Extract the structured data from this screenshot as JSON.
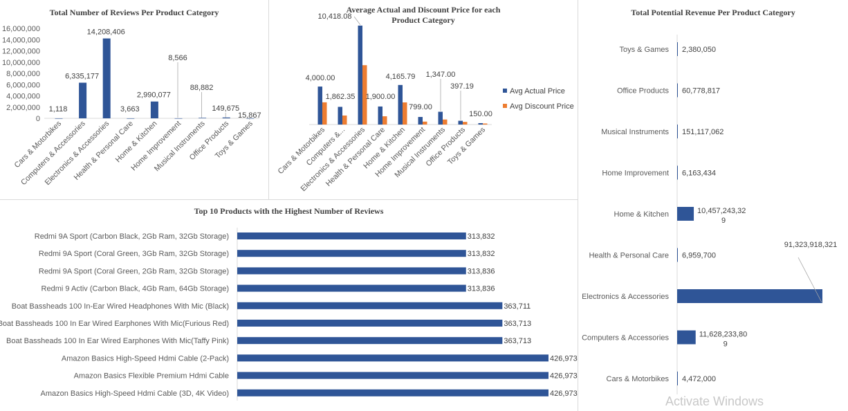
{
  "colors": {
    "blue": "#2f5597",
    "orange": "#ed7d31"
  },
  "charts": {
    "reviews": {
      "title": "Total Number of Reviews Per Product Category",
      "yticks": [
        "0",
        "2,000,000",
        "4,000,000",
        "6,000,000",
        "8,000,000",
        "10,000,000",
        "12,000,000",
        "14,000,000",
        "16,000,000"
      ]
    },
    "price": {
      "title_line1": "Average Actual and Discount Price for each",
      "title_line2": "Product Category",
      "legend": [
        "Avg Actual Price",
        "Avg Discount Price"
      ]
    },
    "revenue": {
      "title": "Total Potential Revenue Per Product Category"
    },
    "top10": {
      "title": "Top 10 Products with the Highest Number of Reviews"
    }
  },
  "chart_data": [
    {
      "type": "bar",
      "title": "Total Number of Reviews Per Product Category",
      "categories": [
        "Cars & Motorbikes",
        "Computers & Accessories",
        "Electronics & Accessories",
        "Health & Personal Care",
        "Home & Kitchen",
        "Home Improvement",
        "Musical Instruments",
        "Office Products",
        "Toys & Games"
      ],
      "values": [
        1118,
        6335177,
        14208406,
        3663,
        2990077,
        8566,
        88882,
        149675,
        15867
      ],
      "labels": [
        "1,118",
        "6,335,177",
        "14,208,406",
        "3,663",
        "2,990,077",
        "8,566",
        "88,882",
        "149,675",
        "15,867"
      ],
      "ylim": [
        0,
        16000000
      ]
    },
    {
      "type": "bar",
      "title": "Average Actual and Discount Price for each Product Category",
      "categories": [
        "Cars & Motorbikes",
        "Computers &...",
        "Electronics & Accessories",
        "Health & Personal Care",
        "Home & Kitchen",
        "Home Improvement",
        "Musical Instruments",
        "Office Products",
        "Toys & Games"
      ],
      "series": [
        {
          "name": "Avg Actual Price",
          "values": [
            4000.0,
            1862.35,
            10418.08,
            1900.0,
            4165.79,
            799.0,
            1347.0,
            397.19,
            150.0
          ]
        },
        {
          "name": "Avg Discount Price",
          "values": [
            2339,
            950,
            6250,
            870,
            2330,
            310,
            530,
            280,
            110
          ]
        }
      ],
      "labels": [
        "4,000.00",
        "1,862.35",
        "10,418.08",
        "1,900.00",
        "4,165.79",
        "799.00",
        "1,347.00",
        "397.19",
        "150.00"
      ],
      "ylim": [
        0,
        11000
      ]
    },
    {
      "type": "bar",
      "orientation": "horizontal",
      "title": "Total Potential Revenue Per Product Category",
      "categories": [
        "Toys & Games",
        "Office Products",
        "Musical Instruments",
        "Home Improvement",
        "Home & Kitchen",
        "Health & Personal Care",
        "Electronics & Accessories",
        "Computers & Accessories",
        "Cars & Motorbikes"
      ],
      "values": [
        2380050,
        60778817,
        151117062,
        6163434,
        10457243329,
        6959700,
        91323918321,
        11628233809,
        4472000
      ],
      "labels": [
        [
          "2,380,050"
        ],
        [
          "60,778,817"
        ],
        [
          "151,117,062"
        ],
        [
          "6,163,434"
        ],
        [
          "10,457,243,32",
          "9"
        ],
        [
          "6,959,700"
        ],
        [
          "91,323,918,321"
        ],
        [
          "11,628,233,80",
          "9"
        ],
        [
          "4,472,000"
        ]
      ]
    },
    {
      "type": "bar",
      "orientation": "horizontal",
      "title": "Top 10 Products with the Highest Number of Reviews",
      "categories": [
        "Redmi 9A Sport (Carbon Black, 2Gb Ram, 32Gb Storage)",
        "Redmi 9A Sport (Coral Green, 3Gb Ram, 32Gb Storage)",
        "Redmi 9A Sport (Coral Green, 2Gb Ram, 32Gb Storage)",
        "Redmi 9 Activ (Carbon Black, 4Gb Ram, 64Gb Storage)",
        "Boat Bassheads 100 In-Ear Wired Headphones With Mic (Black)",
        "Boat Bassheads 100 In Ear Wired Earphones With Mic(Furious Red)",
        "Boat Bassheads 100 In Ear Wired Earphones With Mic(Taffy Pink)",
        "Amazon Basics High-Speed Hdmi Cable (2-Pack)",
        "Amazon Basics Flexible Premium Hdmi Cable",
        "Amazon Basics High-Speed Hdmi Cable (3D, 4K Video)"
      ],
      "values": [
        313832,
        313832,
        313836,
        313836,
        363711,
        363713,
        363713,
        426973,
        426973,
        426973
      ],
      "labels": [
        "313,832",
        "313,832",
        "313,836",
        "313,836",
        "363,711",
        "363,713",
        "363,713",
        "426,973",
        "426,973",
        "426,973"
      ]
    }
  ],
  "watermark": "Activate Windows"
}
